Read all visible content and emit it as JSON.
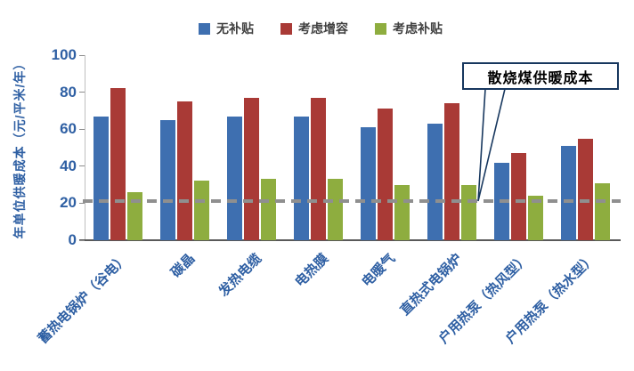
{
  "chart_data": {
    "type": "bar",
    "title": "",
    "ylabel": "年单位供暖成本（元/平米/年）",
    "xlabel": "",
    "ylim": [
      0,
      100
    ],
    "yticks": [
      0,
      20,
      40,
      60,
      80,
      100
    ],
    "grid": false,
    "legend_position": "top",
    "categories": [
      "蓄热电锅炉（谷电）",
      "碳晶",
      "发热电缆",
      "电热膜",
      "电暖气",
      "直热式电锅炉",
      "户用热泵（热风型）",
      "户用热泵（热水型）"
    ],
    "series": [
      {
        "name": "无补贴",
        "color": "#3E6FB0",
        "values": [
          67,
          65,
          67,
          67,
          61,
          63,
          42,
          51
        ]
      },
      {
        "name": "考虑增容",
        "color": "#A93A36",
        "values": [
          82,
          75,
          77,
          77,
          71,
          74,
          47,
          55
        ]
      },
      {
        "name": "考虑补贴",
        "color": "#8EAD3F",
        "values": [
          26,
          32,
          33,
          33,
          30,
          30,
          24,
          31
        ]
      }
    ],
    "reference_line": {
      "label": "散烧煤供暖成本",
      "value": 21,
      "color": "#8F8F8F",
      "style": "dashed"
    }
  },
  "colors": {
    "axis_text": "#2E5FA3",
    "annotation_border": "#17375E",
    "baseline": "#595959"
  }
}
